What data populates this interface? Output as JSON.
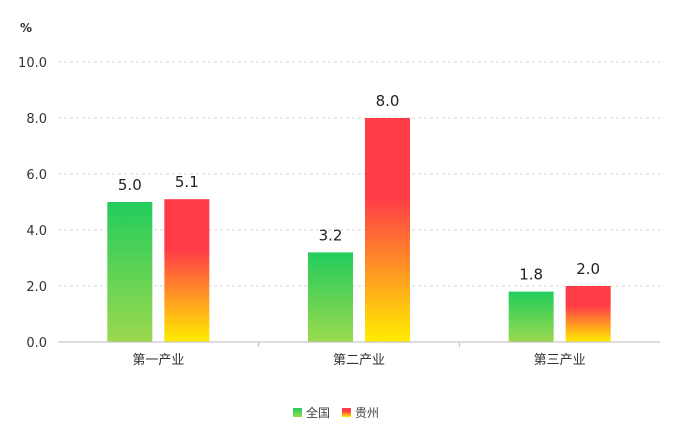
{
  "chart_data": {
    "type": "bar",
    "unit_label": "%",
    "categories": [
      "第一产业",
      "第二产业",
      "第三产业"
    ],
    "series": [
      {
        "name": "全国",
        "values": [
          5.0,
          3.2,
          1.8
        ],
        "value_labels": [
          "5.0",
          "3.2",
          "1.8"
        ],
        "color_top": "#22cc5c",
        "color_bottom": "#9bd94e"
      },
      {
        "name": "贵州",
        "values": [
          5.1,
          8.0,
          2.0
        ],
        "value_labels": [
          "5.1",
          "8.0",
          "2.0"
        ],
        "color_top": "#ff3b48",
        "color_bottom": "#ffee00"
      }
    ],
    "ylim": [
      0,
      10
    ],
    "yticks": [
      "0.0",
      "2.0",
      "4.0",
      "6.0",
      "8.0",
      "10.0"
    ],
    "grid": true,
    "legend_position": "bottom-center",
    "colors": {
      "gridline": "#d4d4d4",
      "axis": "#bbbbbb"
    }
  }
}
